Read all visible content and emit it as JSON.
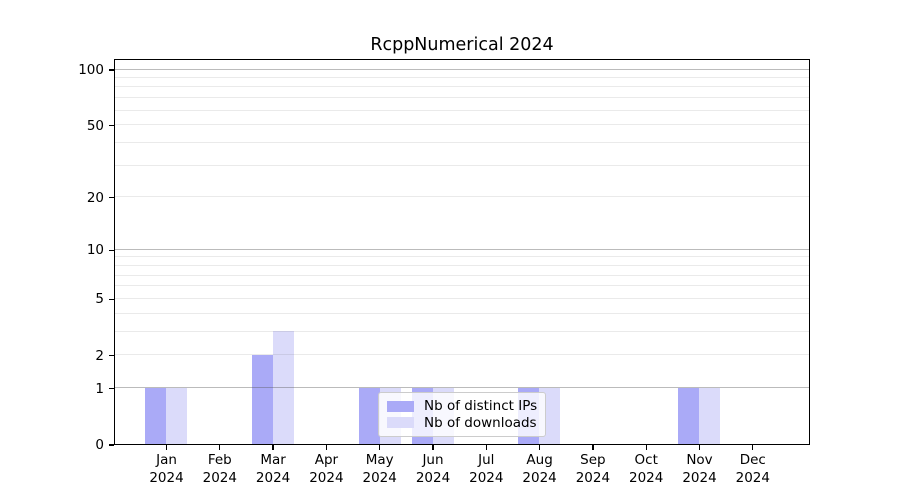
{
  "title": "RcppNumerical 2024",
  "legend": {
    "items": [
      {
        "label": "Nb of distinct IPs",
        "series": "ips"
      },
      {
        "label": "Nb of downloads",
        "series": "downloads"
      }
    ]
  },
  "y_axis": {
    "ticks": [
      {
        "value": 100,
        "label": "100"
      },
      {
        "value": 50,
        "label": "50"
      },
      {
        "value": 20,
        "label": "20"
      },
      {
        "value": 10,
        "label": "10"
      },
      {
        "value": 5,
        "label": "5"
      },
      {
        "value": 2,
        "label": "2"
      },
      {
        "value": 1,
        "label": "1"
      },
      {
        "value": 0,
        "label": "0"
      }
    ],
    "major_gridlines": [
      1,
      10,
      100
    ],
    "minor_gridlines": [
      2,
      3,
      4,
      5,
      6,
      7,
      8,
      9,
      20,
      30,
      40,
      50,
      60,
      70,
      80,
      90
    ]
  },
  "x_axis": {
    "ticks": [
      {
        "month": "Jan",
        "year": "2024"
      },
      {
        "month": "Feb",
        "year": "2024"
      },
      {
        "month": "Mar",
        "year": "2024"
      },
      {
        "month": "Apr",
        "year": "2024"
      },
      {
        "month": "May",
        "year": "2024"
      },
      {
        "month": "Jun",
        "year": "2024"
      },
      {
        "month": "Jul",
        "year": "2024"
      },
      {
        "month": "Aug",
        "year": "2024"
      },
      {
        "month": "Sep",
        "year": "2024"
      },
      {
        "month": "Oct",
        "year": "2024"
      },
      {
        "month": "Nov",
        "year": "2024"
      },
      {
        "month": "Dec",
        "year": "2024"
      }
    ]
  },
  "colors": {
    "ips": "#aaaaf7",
    "downloads": "#dbdbfa",
    "grid_major": "rgba(85,85,85,0.40)",
    "grid_minor": "rgba(85,85,85,0.12)",
    "spine": "#000000",
    "text": "#000000",
    "legend_border": "#cccccc",
    "legend_background": "rgba(255,255,255,0.8)",
    "background": "#ffffff"
  },
  "chart_data": {
    "type": "bar",
    "title": "RcppNumerical 2024",
    "categories": [
      "Jan 2024",
      "Feb 2024",
      "Mar 2024",
      "Apr 2024",
      "May 2024",
      "Jun 2024",
      "Jul 2024",
      "Aug 2024",
      "Sep 2024",
      "Oct 2024",
      "Nov 2024",
      "Dec 2024"
    ],
    "series": [
      {
        "name": "Nb of distinct IPs",
        "key": "ips",
        "color": "#aaaaf7",
        "values": [
          1,
          0,
          2,
          0,
          1,
          1,
          0,
          1,
          0,
          0,
          1,
          0
        ]
      },
      {
        "name": "Nb of downloads",
        "key": "downloads",
        "color": "#dbdbfa",
        "values": [
          1,
          0,
          3,
          0,
          1,
          1,
          0,
          1,
          0,
          0,
          1,
          0
        ]
      }
    ],
    "xlabel": "",
    "ylabel": "",
    "yscale": "log1p",
    "ylim": [
      0,
      114
    ],
    "yticks": [
      0,
      1,
      2,
      5,
      10,
      20,
      50,
      100
    ],
    "grid": true,
    "legend_position": "lower center"
  }
}
